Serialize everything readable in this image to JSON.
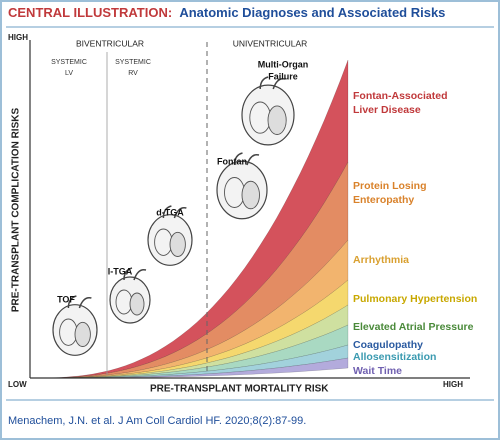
{
  "title": {
    "label": "CENTRAL ILLUSTRATION:",
    "text": "Anatomic Diagnoses and Associated Risks"
  },
  "axes": {
    "y_label": "PRE-TRANSPLANT COMPLICATION RISKS",
    "y_high": "HIGH",
    "x_low": "LOW",
    "x_high": "HIGH",
    "x_label": "PRE-TRANSPLANT MORTALITY RISK"
  },
  "groups": [
    {
      "label": "BIVENTRICULAR"
    },
    {
      "label": "UNIVENTRICULAR"
    }
  ],
  "subgroups": [
    {
      "lines": [
        "SYSTEMIC",
        "LV"
      ]
    },
    {
      "lines": [
        "SYSTEMIC",
        "RV"
      ]
    }
  ],
  "hearts": [
    {
      "lines": [
        "TOF"
      ]
    },
    {
      "lines": [
        "l-TGA"
      ]
    },
    {
      "lines": [
        "d-TGA"
      ]
    },
    {
      "lines": [
        "Fontan"
      ]
    },
    {
      "lines": [
        "Multi-Organ",
        "Failure"
      ]
    }
  ],
  "risks": [
    {
      "lines": [
        "Fontan-Associated",
        "Liver Disease"
      ],
      "color": "#d4525c",
      "text_color": "#c0393b"
    },
    {
      "lines": [
        "Protein Losing",
        "Enteropathy"
      ],
      "color": "#e38c63",
      "text_color": "#d9822b"
    },
    {
      "lines": [
        "Arrhythmia"
      ],
      "color": "#f2b46e",
      "text_color": "#d9a030"
    },
    {
      "lines": [
        "Pulmonary Hypertension"
      ],
      "color": "#f5d86e",
      "text_color": "#c8a800"
    },
    {
      "lines": [
        "Elevated Atrial Pressure"
      ],
      "color": "#cfe0a0",
      "text_color": "#4a8a3a"
    },
    {
      "lines": [
        "Coagulopathy"
      ],
      "color": "#a9d9c2",
      "text_color": "#2a5aa0"
    },
    {
      "lines": [
        "Allosensitization"
      ],
      "color": "#a2d2dc",
      "text_color": "#3a9ab0"
    },
    {
      "lines": [
        "Wait Time"
      ],
      "color": "#b3abdc",
      "text_color": "#7060b0"
    }
  ],
  "citation": "Menachem, J.N. et al. J Am Coll Cardiol HF. 2020;8(2):87-99."
}
